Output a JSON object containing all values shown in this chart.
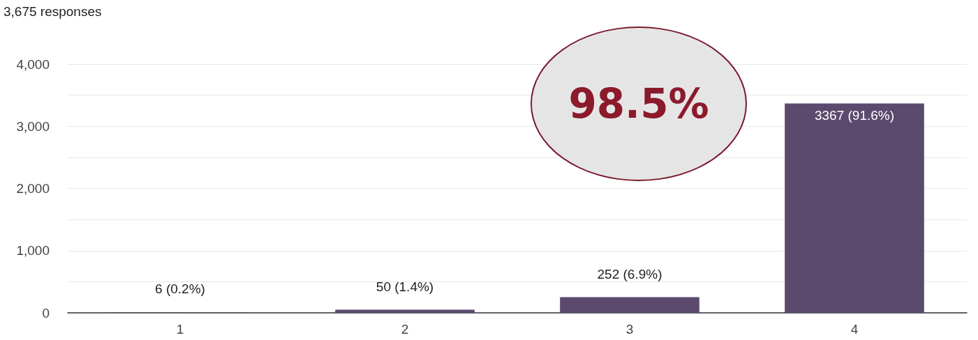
{
  "chart_data": {
    "type": "bar",
    "title": "3,675 responses",
    "categories": [
      "1",
      "2",
      "3",
      "4"
    ],
    "values": [
      6,
      50,
      252,
      3367
    ],
    "color": "#5b4a6e",
    "value_labels": [
      "6 (0.2%)",
      "50 (1.4%)",
      "252 (6.9%)",
      "3367 (91.6%)"
    ],
    "ylim": [
      0,
      4000
    ],
    "yticks": [
      0,
      {
        "value": 500,
        "label": null
      },
      {
        "value": 1000,
        "label": "1,000"
      },
      {
        "value": 1500,
        "label": null
      },
      {
        "value": 2000,
        "label": "2,000"
      },
      {
        "value": 2500,
        "label": null
      },
      {
        "value": 3000,
        "label": "3,000"
      },
      {
        "value": 3500,
        "label": null
      },
      {
        "value": 4000,
        "label": "4,000"
      }
    ],
    "annotations": [
      "98.5%"
    ],
    "grid": "y"
  }
}
